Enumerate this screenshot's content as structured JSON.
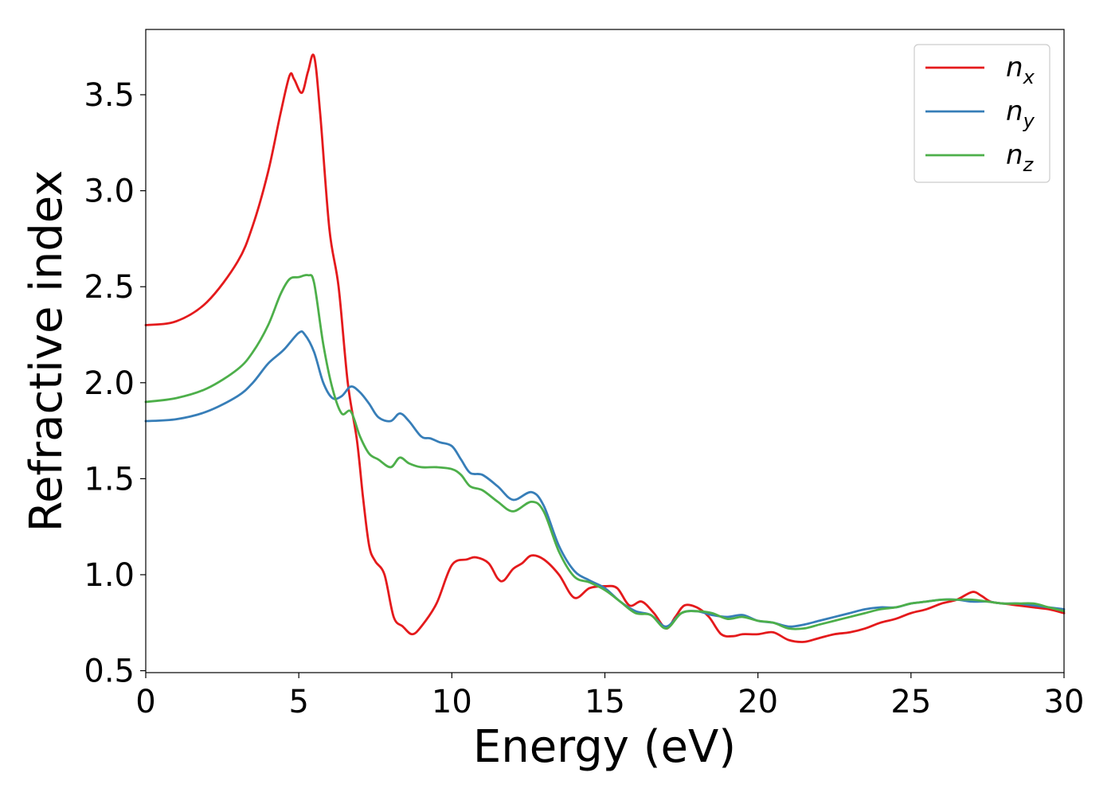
{
  "chart_data": {
    "type": "line",
    "xlabel": "Energy (eV)",
    "ylabel": "Refractive index",
    "xlim": [
      0,
      30
    ],
    "ylim": [
      0.49,
      3.84
    ],
    "xticks": [
      0,
      5,
      10,
      15,
      20,
      25,
      30
    ],
    "xtick_labels": [
      "0",
      "5",
      "10",
      "15",
      "20",
      "25",
      "30"
    ],
    "yticks": [
      0.5,
      1.0,
      1.5,
      2.0,
      2.5,
      3.0,
      3.5
    ],
    "ytick_labels": [
      "0.5",
      "1.0",
      "1.5",
      "2.0",
      "2.5",
      "3.0",
      "3.5"
    ],
    "grid": false,
    "legend_position": "top-right",
    "series": [
      {
        "name": "n",
        "subscript": "x",
        "color": "#e41a1c",
        "points": [
          [
            0,
            2.3
          ],
          [
            1,
            2.32
          ],
          [
            2,
            2.42
          ],
          [
            3,
            2.63
          ],
          [
            3.5,
            2.82
          ],
          [
            4,
            3.1
          ],
          [
            4.4,
            3.4
          ],
          [
            4.7,
            3.6
          ],
          [
            4.85,
            3.58
          ],
          [
            5.1,
            3.51
          ],
          [
            5.3,
            3.62
          ],
          [
            5.5,
            3.7
          ],
          [
            5.7,
            3.4
          ],
          [
            6,
            2.8
          ],
          [
            6.3,
            2.5
          ],
          [
            6.6,
            2.0
          ],
          [
            6.9,
            1.7
          ],
          [
            7.1,
            1.4
          ],
          [
            7.3,
            1.15
          ],
          [
            7.5,
            1.07
          ],
          [
            7.8,
            1.0
          ],
          [
            8.1,
            0.78
          ],
          [
            8.4,
            0.73
          ],
          [
            8.7,
            0.69
          ],
          [
            9,
            0.73
          ],
          [
            9.5,
            0.85
          ],
          [
            10,
            1.05
          ],
          [
            10.5,
            1.08
          ],
          [
            10.8,
            1.09
          ],
          [
            11.2,
            1.06
          ],
          [
            11.5,
            0.98
          ],
          [
            11.7,
            0.97
          ],
          [
            12,
            1.03
          ],
          [
            12.3,
            1.06
          ],
          [
            12.6,
            1.1
          ],
          [
            13,
            1.08
          ],
          [
            13.5,
            1.0
          ],
          [
            14,
            0.88
          ],
          [
            14.5,
            0.93
          ],
          [
            15,
            0.94
          ],
          [
            15.4,
            0.93
          ],
          [
            15.8,
            0.84
          ],
          [
            16.2,
            0.86
          ],
          [
            16.6,
            0.8
          ],
          [
            17,
            0.72
          ],
          [
            17.3,
            0.78
          ],
          [
            17.6,
            0.84
          ],
          [
            18,
            0.83
          ],
          [
            18.4,
            0.78
          ],
          [
            18.8,
            0.69
          ],
          [
            19.2,
            0.68
          ],
          [
            19.5,
            0.69
          ],
          [
            20,
            0.69
          ],
          [
            20.5,
            0.7
          ],
          [
            21,
            0.66
          ],
          [
            21.5,
            0.65
          ],
          [
            22,
            0.67
          ],
          [
            22.5,
            0.69
          ],
          [
            23,
            0.7
          ],
          [
            23.5,
            0.72
          ],
          [
            24,
            0.75
          ],
          [
            24.5,
            0.77
          ],
          [
            25,
            0.8
          ],
          [
            25.5,
            0.82
          ],
          [
            26,
            0.85
          ],
          [
            26.5,
            0.87
          ],
          [
            27,
            0.91
          ],
          [
            27.3,
            0.89
          ],
          [
            27.6,
            0.86
          ],
          [
            28,
            0.85
          ],
          [
            28.5,
            0.84
          ],
          [
            29,
            0.83
          ],
          [
            29.5,
            0.82
          ],
          [
            30,
            0.8
          ]
        ]
      },
      {
        "name": "n",
        "subscript": "y",
        "color": "#377eb8",
        "points": [
          [
            0,
            1.8
          ],
          [
            1,
            1.81
          ],
          [
            2,
            1.85
          ],
          [
            3,
            1.93
          ],
          [
            3.5,
            2.0
          ],
          [
            4,
            2.1
          ],
          [
            4.5,
            2.17
          ],
          [
            5,
            2.26
          ],
          [
            5.2,
            2.25
          ],
          [
            5.5,
            2.16
          ],
          [
            5.8,
            2.0
          ],
          [
            6.1,
            1.92
          ],
          [
            6.4,
            1.93
          ],
          [
            6.7,
            1.98
          ],
          [
            7,
            1.95
          ],
          [
            7.3,
            1.89
          ],
          [
            7.6,
            1.82
          ],
          [
            8,
            1.8
          ],
          [
            8.3,
            1.84
          ],
          [
            8.6,
            1.8
          ],
          [
            9,
            1.72
          ],
          [
            9.3,
            1.71
          ],
          [
            9.6,
            1.69
          ],
          [
            10,
            1.67
          ],
          [
            10.3,
            1.6
          ],
          [
            10.6,
            1.53
          ],
          [
            11,
            1.52
          ],
          [
            11.5,
            1.46
          ],
          [
            12,
            1.39
          ],
          [
            12.6,
            1.43
          ],
          [
            13,
            1.36
          ],
          [
            13.5,
            1.15
          ],
          [
            14,
            1.02
          ],
          [
            14.5,
            0.97
          ],
          [
            15,
            0.93
          ],
          [
            15.5,
            0.86
          ],
          [
            16,
            0.81
          ],
          [
            16.5,
            0.79
          ],
          [
            17,
            0.73
          ],
          [
            17.5,
            0.8
          ],
          [
            18,
            0.81
          ],
          [
            18.5,
            0.79
          ],
          [
            19,
            0.78
          ],
          [
            19.5,
            0.79
          ],
          [
            20,
            0.76
          ],
          [
            20.5,
            0.75
          ],
          [
            21,
            0.73
          ],
          [
            21.5,
            0.74
          ],
          [
            22,
            0.76
          ],
          [
            22.5,
            0.78
          ],
          [
            23,
            0.8
          ],
          [
            23.5,
            0.82
          ],
          [
            24,
            0.83
          ],
          [
            24.5,
            0.83
          ],
          [
            25,
            0.85
          ],
          [
            25.5,
            0.86
          ],
          [
            26,
            0.87
          ],
          [
            26.5,
            0.87
          ],
          [
            27,
            0.86
          ],
          [
            27.5,
            0.86
          ],
          [
            28,
            0.85
          ],
          [
            28.5,
            0.85
          ],
          [
            29,
            0.84
          ],
          [
            29.5,
            0.83
          ],
          [
            30,
            0.82
          ]
        ]
      },
      {
        "name": "n",
        "subscript": "z",
        "color": "#4daf4a",
        "points": [
          [
            0,
            1.9
          ],
          [
            1,
            1.92
          ],
          [
            2,
            1.97
          ],
          [
            3,
            2.07
          ],
          [
            3.5,
            2.16
          ],
          [
            4,
            2.3
          ],
          [
            4.4,
            2.46
          ],
          [
            4.7,
            2.54
          ],
          [
            5,
            2.55
          ],
          [
            5.3,
            2.56
          ],
          [
            5.5,
            2.52
          ],
          [
            5.8,
            2.2
          ],
          [
            6.1,
            1.97
          ],
          [
            6.4,
            1.84
          ],
          [
            6.7,
            1.85
          ],
          [
            7,
            1.72
          ],
          [
            7.3,
            1.63
          ],
          [
            7.6,
            1.6
          ],
          [
            8,
            1.56
          ],
          [
            8.3,
            1.61
          ],
          [
            8.6,
            1.58
          ],
          [
            9,
            1.56
          ],
          [
            9.5,
            1.56
          ],
          [
            10,
            1.55
          ],
          [
            10.3,
            1.52
          ],
          [
            10.6,
            1.46
          ],
          [
            11,
            1.44
          ],
          [
            11.5,
            1.38
          ],
          [
            12,
            1.33
          ],
          [
            12.6,
            1.38
          ],
          [
            13,
            1.33
          ],
          [
            13.5,
            1.12
          ],
          [
            14,
            0.99
          ],
          [
            14.5,
            0.96
          ],
          [
            15,
            0.92
          ],
          [
            15.5,
            0.86
          ],
          [
            16,
            0.8
          ],
          [
            16.5,
            0.79
          ],
          [
            17,
            0.72
          ],
          [
            17.5,
            0.8
          ],
          [
            18,
            0.81
          ],
          [
            18.5,
            0.8
          ],
          [
            19,
            0.77
          ],
          [
            19.5,
            0.78
          ],
          [
            20,
            0.76
          ],
          [
            20.5,
            0.75
          ],
          [
            21,
            0.72
          ],
          [
            21.5,
            0.72
          ],
          [
            22,
            0.74
          ],
          [
            22.5,
            0.76
          ],
          [
            23,
            0.78
          ],
          [
            23.5,
            0.8
          ],
          [
            24,
            0.82
          ],
          [
            24.5,
            0.83
          ],
          [
            25,
            0.85
          ],
          [
            25.5,
            0.86
          ],
          [
            26,
            0.87
          ],
          [
            26.5,
            0.87
          ],
          [
            27,
            0.87
          ],
          [
            27.5,
            0.86
          ],
          [
            28,
            0.85
          ],
          [
            28.5,
            0.85
          ],
          [
            29,
            0.85
          ],
          [
            29.5,
            0.83
          ],
          [
            30,
            0.81
          ]
        ]
      }
    ]
  }
}
